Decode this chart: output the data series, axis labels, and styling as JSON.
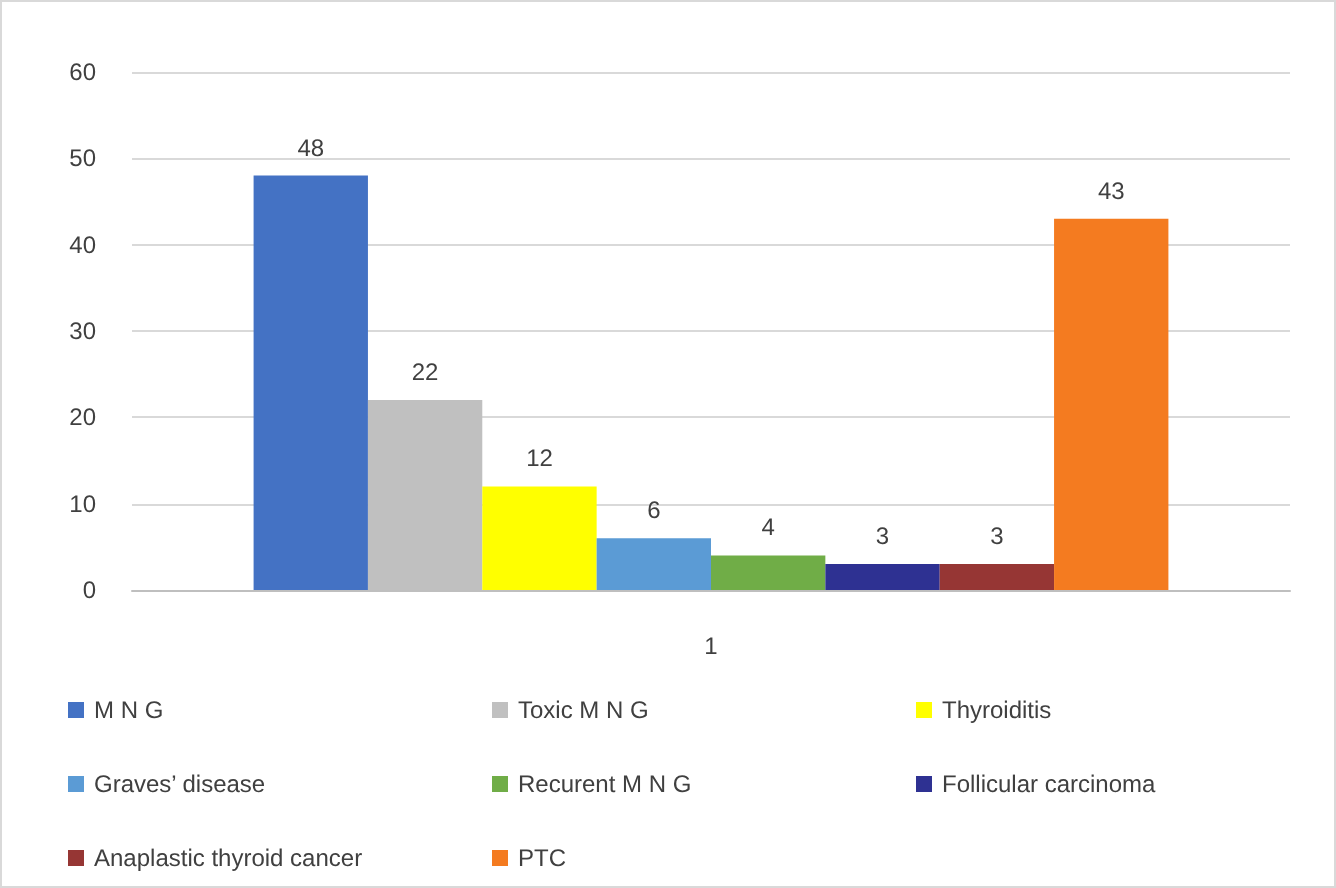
{
  "chart_data": {
    "type": "bar",
    "categories": [
      "1"
    ],
    "series": [
      {
        "name": "M N G",
        "color": "#4472c4",
        "values": [
          48
        ]
      },
      {
        "name": "Toxic M N G",
        "color": "#c0c0c0",
        "values": [
          22
        ]
      },
      {
        "name": "Thyroiditis",
        "color": "#ffff00",
        "values": [
          12
        ]
      },
      {
        "name": "Graves’ disease",
        "color": "#5b9bd5",
        "values": [
          6
        ]
      },
      {
        "name": "Recurent M N G",
        "color": "#70ad47",
        "values": [
          4
        ]
      },
      {
        "name": "Follicular carcinoma",
        "color": "#2e3192",
        "values": [
          3
        ]
      },
      {
        "name": "Anaplastic thyroid cancer",
        "color": "#963634",
        "values": [
          3
        ]
      },
      {
        "name": "PTC",
        "color": "#f47b20",
        "values": [
          43
        ]
      }
    ],
    "ylim": [
      0,
      60
    ],
    "yticks": [
      0,
      10,
      20,
      30,
      40,
      50,
      60
    ],
    "grid": "y",
    "legend": "bottom",
    "data_labels": true
  }
}
